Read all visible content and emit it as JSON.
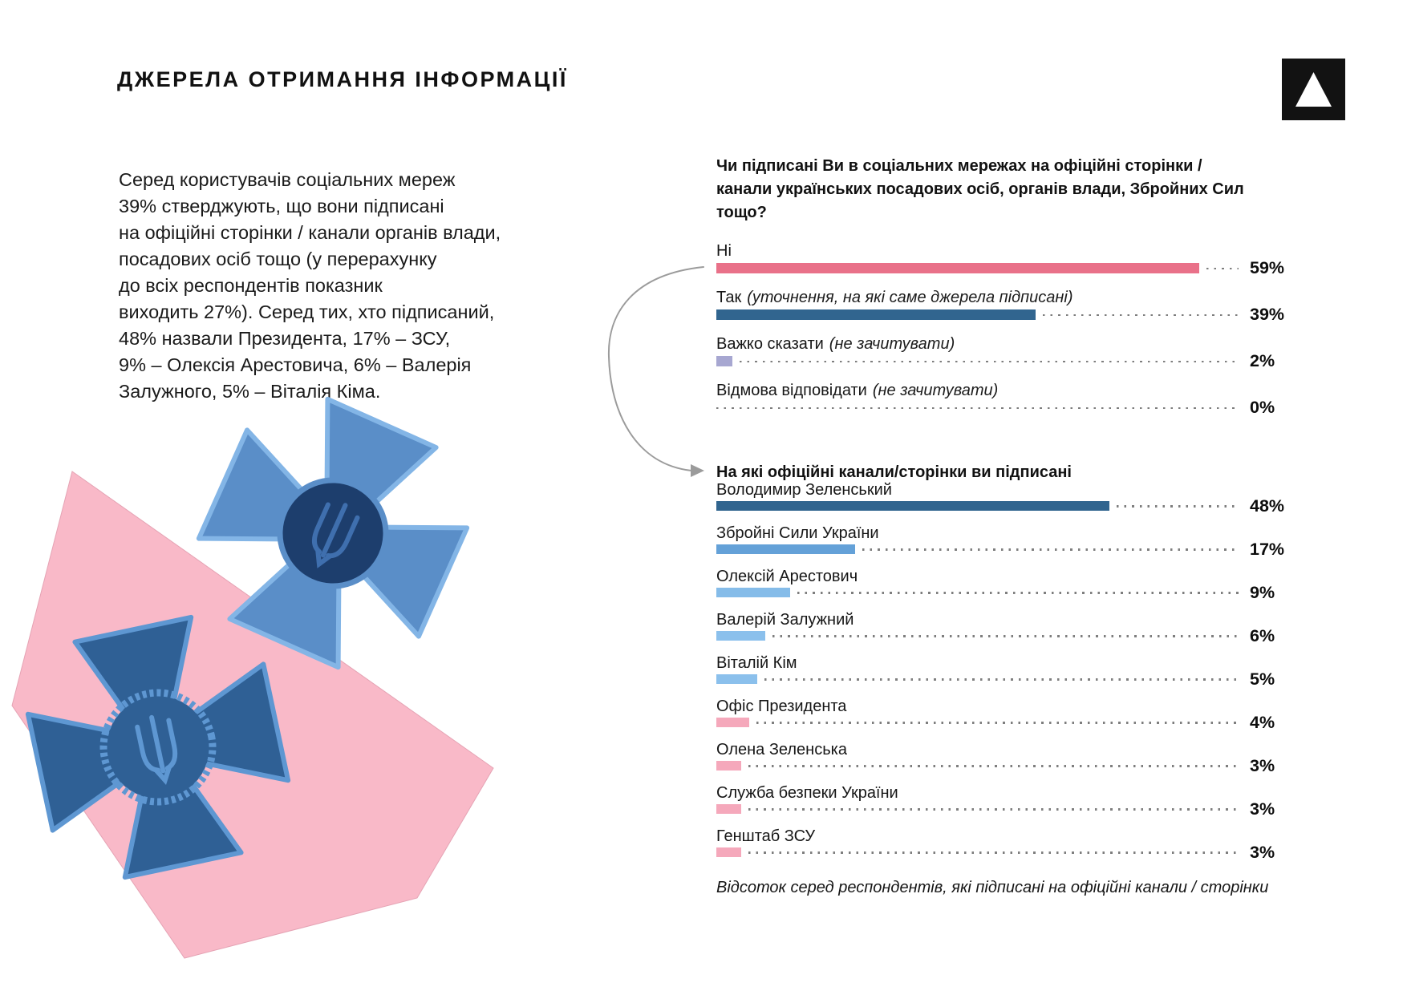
{
  "header": {
    "title": "ДЖЕРЕЛА ОТРИМАННЯ ІНФОРМАЦІЇ"
  },
  "logo": {
    "icon": "triangle-in-square-logo",
    "background": "#121212",
    "triangle_color": "#ffffff"
  },
  "intro": {
    "text": "Серед користувачів соціальних мереж\n39% стверджують, що вони підписані\nна офіційні сторінки / канали органів влади,\nпосадових осіб тощо (у перерахунку\nдо всіх респондентів показник\nвиходить 27%). Серед тих, хто підписаний,\n48% назвали Президента, 17% – ЗСУ,\n9% – Олексія Арестовича, 6% – Валерія\nЗалужного, 5% – Віталія Кіма."
  },
  "chart_data": [
    {
      "type": "bar",
      "orientation": "horizontal",
      "unit": "%",
      "title": "Чи підписані Ви в соціальних мережах на офіційні сторінки / канали українських посадових осіб, органів влади, Збройних Сил тощо?",
      "categories": [
        "Ні",
        "Так",
        "Важко сказати",
        "Відмова відповідати"
      ],
      "notes": [
        "",
        "(уточнення, на які саме джерела підписані)",
        "(не зачитувати)",
        "(не зачитувати)"
      ],
      "values": [
        59,
        39,
        2,
        0
      ],
      "value_labels": [
        "59%",
        "39%",
        "2%",
        "0%"
      ],
      "bar_colors": [
        "#e97189",
        "#31658f",
        "#a7a7d1",
        ""
      ],
      "leader_color": "#7e7e7e",
      "xlim": [
        0,
        64
      ],
      "grid": false
    },
    {
      "type": "bar",
      "orientation": "horizontal",
      "unit": "%",
      "title": "На які офіційні канали/сторінки ви підписані",
      "categories": [
        "Володимир Зеленський",
        "Збройні Сили України",
        "Олексій Арестович",
        "Валерій Залужний",
        "Віталій Кім",
        "Офіс Президента",
        "Олена Зеленська",
        "Служба безпеки України",
        "Генштаб ЗСУ"
      ],
      "notes": [
        "",
        "",
        "",
        "",
        "",
        "",
        "",
        "",
        ""
      ],
      "values": [
        48,
        17,
        9,
        6,
        5,
        4,
        3,
        3,
        3
      ],
      "value_labels": [
        "48%",
        "17%",
        "9%",
        "6%",
        "5%",
        "4%",
        "3%",
        "3%",
        "3%"
      ],
      "bar_colors": [
        "#31658f",
        "#64a1d8",
        "#85bce9",
        "#8bc0ec",
        "#8bc0ec",
        "#f5a8bb",
        "#f5a8bb",
        "#f5a8bb",
        "#f5a8bb"
      ],
      "leader_color": "#7e7e7e",
      "xlim": [
        0,
        64
      ],
      "grid": false,
      "footnote": "Відсоток серед респондентів, які підписані на офіційні канали / сторінки"
    }
  ],
  "decor": {
    "description": "pink polygon with two Ukrainian military emblem crosses (tryzub)",
    "pink": "#f9b9c8",
    "cross_light_fill": "#5a8ec8",
    "cross_light_border": "#83b5e6",
    "cross_dark_fill": "#2f6095",
    "cross_dark_border": "#5e97d2",
    "circle_navy": "#1d3e6d",
    "arrow_color": "#9b9b9b"
  }
}
